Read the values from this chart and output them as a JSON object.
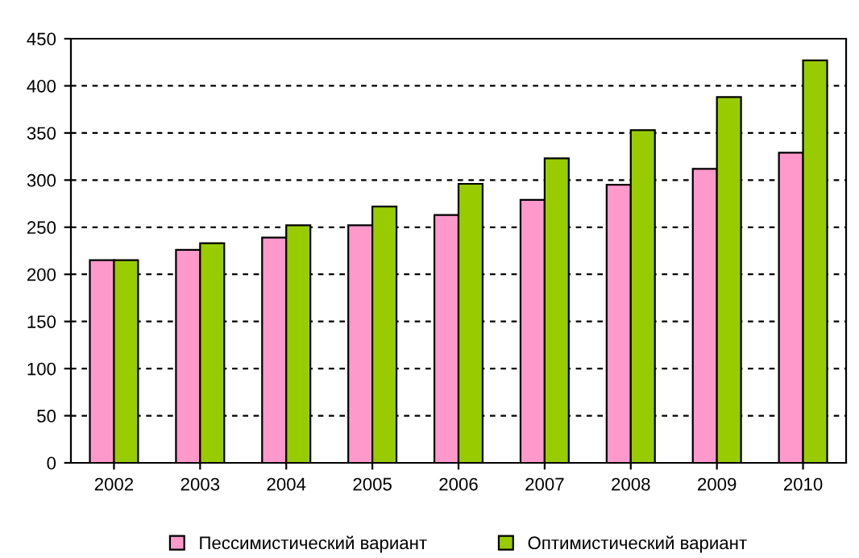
{
  "chart_data": {
    "type": "bar",
    "categories": [
      "2002",
      "2003",
      "2004",
      "2005",
      "2006",
      "2007",
      "2008",
      "2009",
      "2010"
    ],
    "series": [
      {
        "name": "Пессимистический вариант",
        "color": "#ff99cc",
        "values": [
          215,
          226,
          239,
          252,
          263,
          279,
          295,
          312,
          329
        ]
      },
      {
        "name": "Оптимистический вариант",
        "color": "#99cc00",
        "values": [
          215,
          233,
          252,
          272,
          296,
          323,
          353,
          388,
          427
        ]
      }
    ],
    "ylim": [
      0,
      450
    ],
    "yticks": [
      0,
      50,
      100,
      150,
      200,
      250,
      300,
      350,
      400,
      450
    ],
    "grid": "y",
    "legend": "bottom"
  }
}
